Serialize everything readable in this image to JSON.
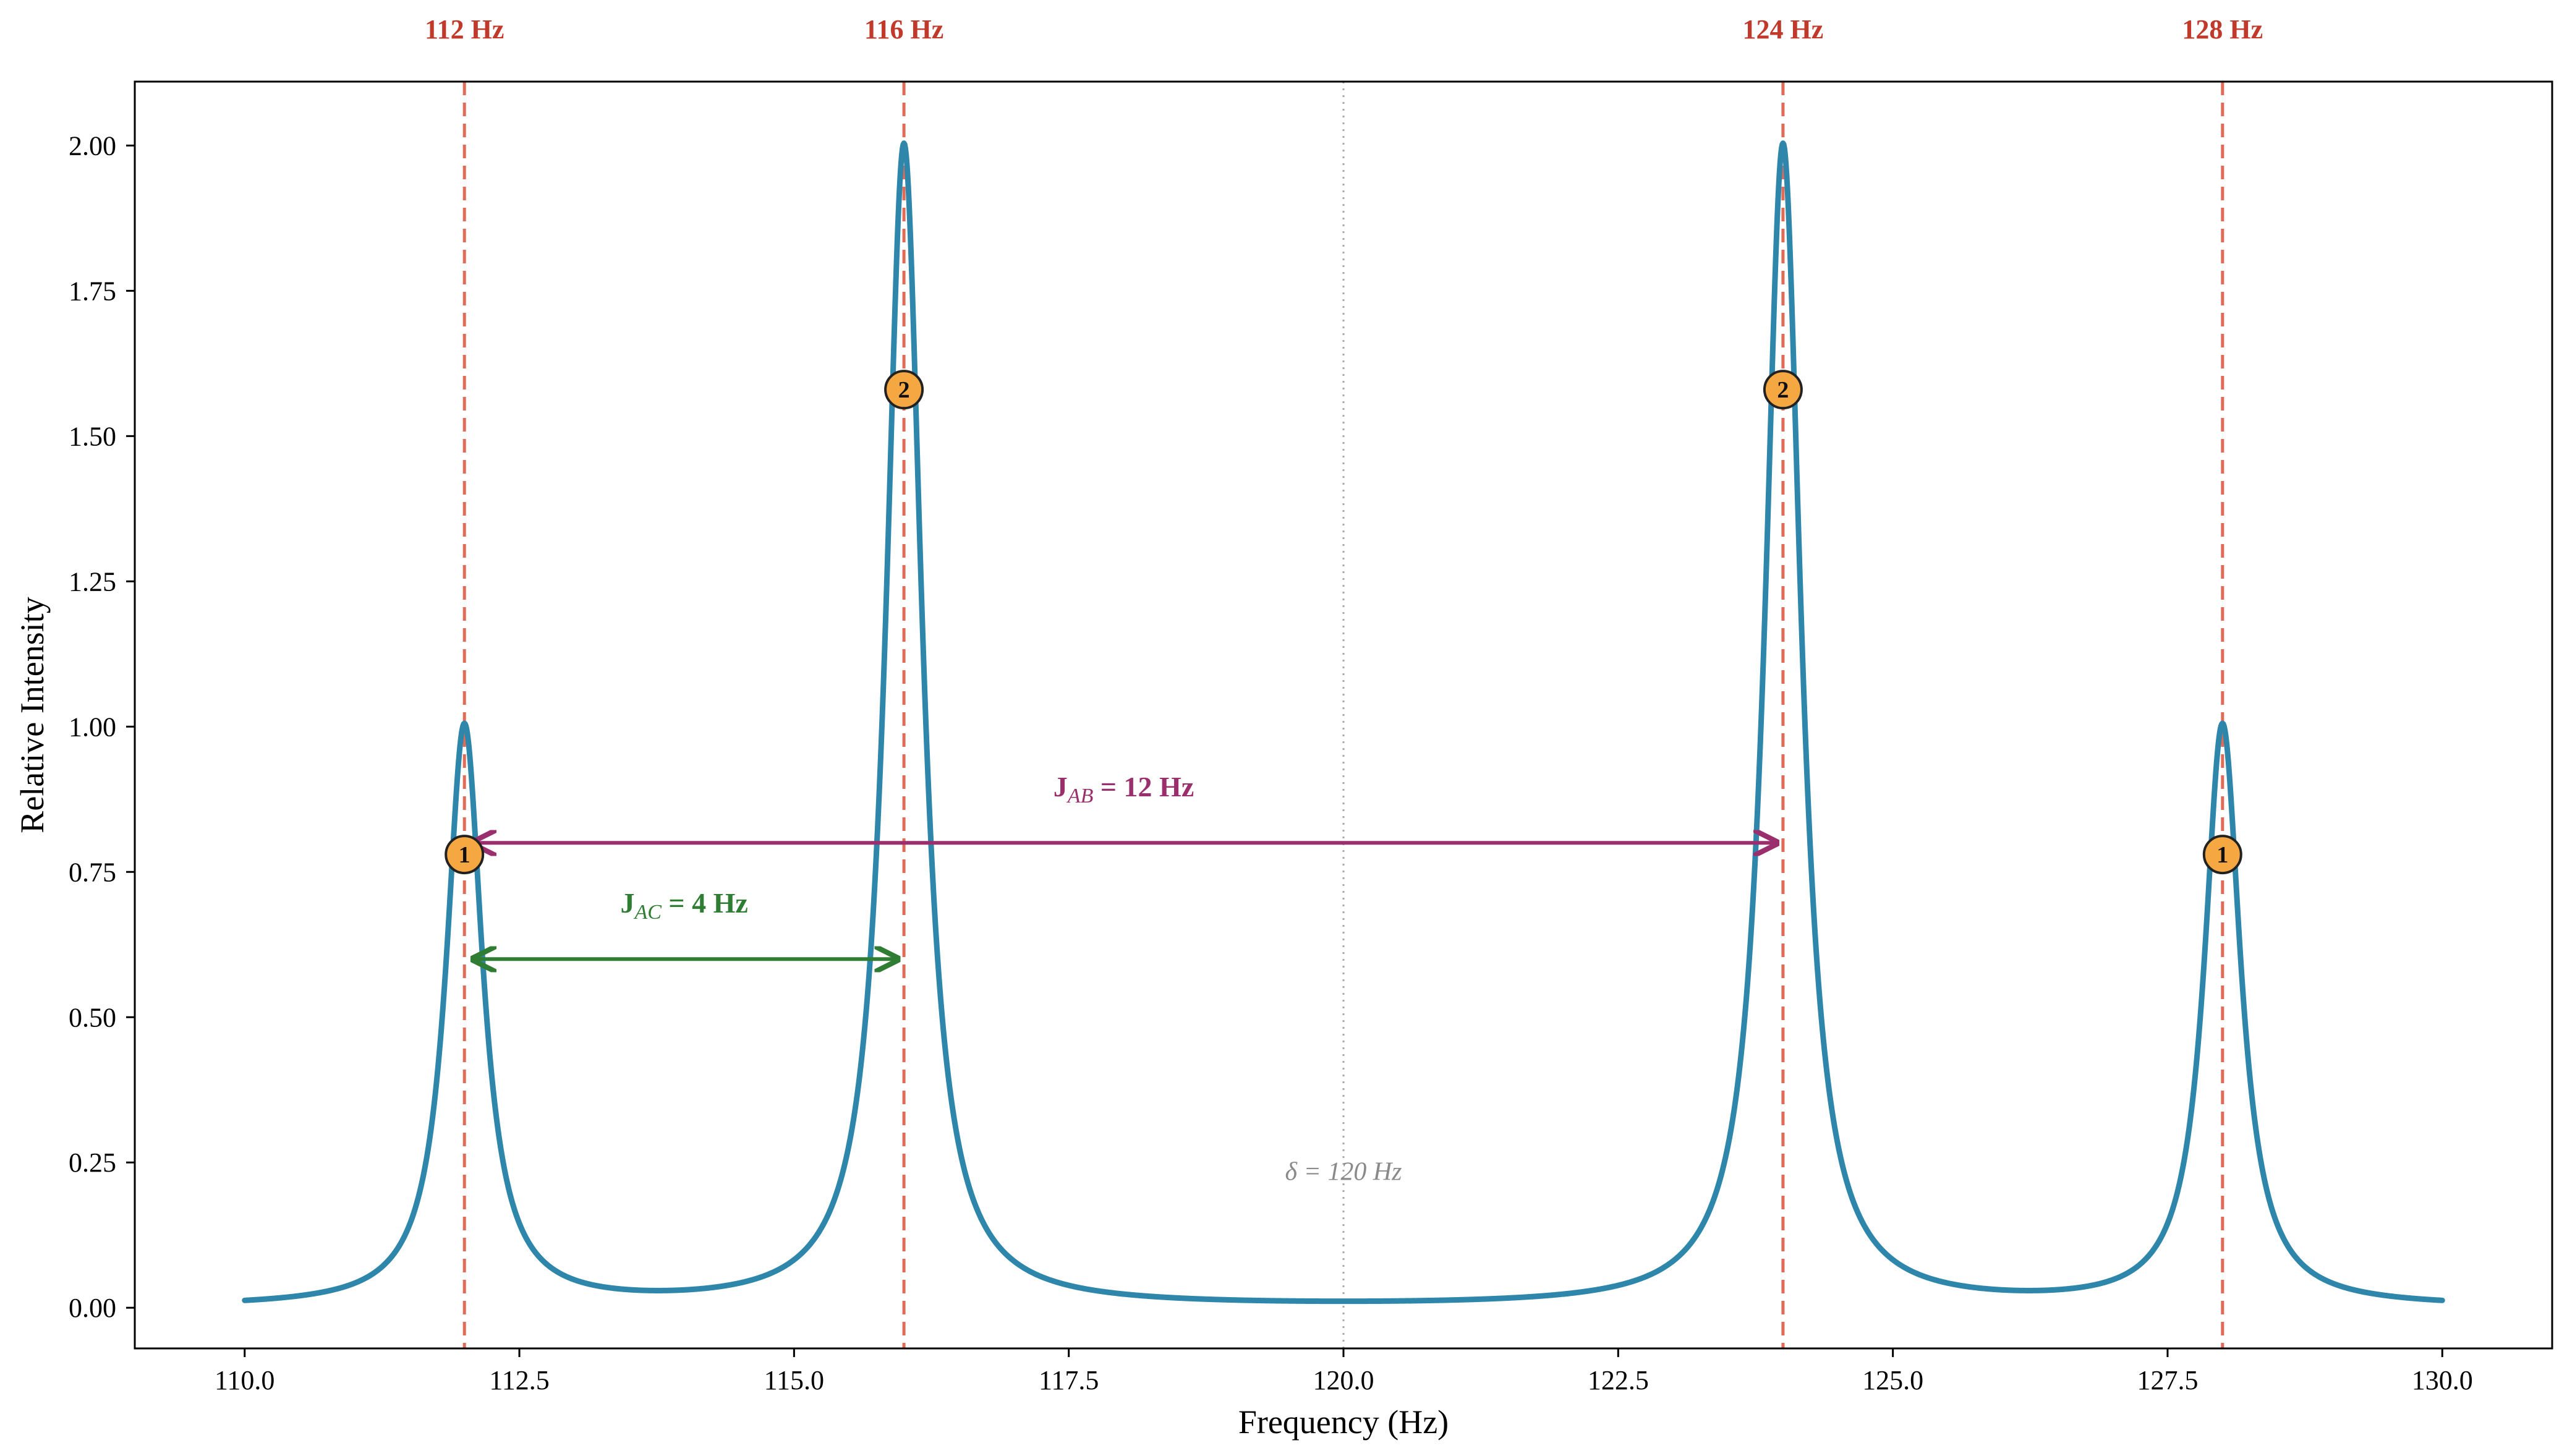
{
  "chart_data": {
    "type": "line",
    "xlabel": "Frequency (Hz)",
    "ylabel": "Relative Intensity",
    "xlim": [
      109.0,
      131.0
    ],
    "ylim": [
      -0.07,
      2.11
    ],
    "x_ticks": [
      110.0,
      112.5,
      115.0,
      117.5,
      120.0,
      122.5,
      125.0,
      127.5,
      130.0
    ],
    "x_tick_labels": [
      "110.0",
      "112.5",
      "115.0",
      "117.5",
      "120.0",
      "122.5",
      "125.0",
      "127.5",
      "130.0"
    ],
    "y_ticks": [
      0.0,
      0.25,
      0.5,
      0.75,
      1.0,
      1.25,
      1.5,
      1.75,
      2.0
    ],
    "y_tick_labels": [
      "0.00",
      "0.25",
      "0.50",
      "0.75",
      "1.00",
      "1.25",
      "1.50",
      "1.75",
      "2.00"
    ],
    "grid": false,
    "spectrum": {
      "x_range": [
        110.0,
        130.0
      ],
      "peaks": [
        {
          "center": 112,
          "intensity": 1
        },
        {
          "center": 116,
          "intensity": 2
        },
        {
          "center": 124,
          "intensity": 2
        },
        {
          "center": 128,
          "intensity": 1
        }
      ],
      "sampled_points": [
        {
          "x": 110.0,
          "y": 0.03
        },
        {
          "x": 111.0,
          "y": 0.1
        },
        {
          "x": 112.0,
          "y": 1.01
        },
        {
          "x": 113.0,
          "y": 0.11
        },
        {
          "x": 113.75,
          "y": 0.07
        },
        {
          "x": 115.0,
          "y": 0.2
        },
        {
          "x": 116.0,
          "y": 2.01
        },
        {
          "x": 117.0,
          "y": 0.2
        },
        {
          "x": 120.0,
          "y": 0.03
        },
        {
          "x": 123.0,
          "y": 0.2
        },
        {
          "x": 124.0,
          "y": 2.01
        },
        {
          "x": 125.0,
          "y": 0.2
        },
        {
          "x": 126.25,
          "y": 0.07
        },
        {
          "x": 127.0,
          "y": 0.11
        },
        {
          "x": 128.0,
          "y": 1.01
        },
        {
          "x": 129.0,
          "y": 0.1
        },
        {
          "x": 130.0,
          "y": 0.03
        }
      ]
    },
    "peak_lines": [
      {
        "x": 112,
        "label": "112 Hz"
      },
      {
        "x": 116,
        "label": "116 Hz"
      },
      {
        "x": 124,
        "label": "124 Hz"
      },
      {
        "x": 128,
        "label": "128 Hz"
      }
    ],
    "center_line": {
      "x": 120,
      "label": "δ = 120 Hz",
      "label_y": 0.22
    },
    "multiplicity_markers": [
      {
        "x": 112,
        "y": 0.78,
        "label": "1"
      },
      {
        "x": 116,
        "y": 1.58,
        "label": "2"
      },
      {
        "x": 124,
        "y": 1.58,
        "label": "2"
      },
      {
        "x": 128,
        "y": 0.78,
        "label": "1"
      }
    ],
    "couplings": [
      {
        "name": "J",
        "subscript": "AB",
        "suffix": " = 12 Hz",
        "from": 112,
        "to": 124,
        "y": 0.8,
        "label_x": 118.0,
        "label_y": 0.88
      },
      {
        "name": "J",
        "subscript": "AC",
        "suffix": " = 4 Hz",
        "from": 112,
        "to": 116,
        "y": 0.6,
        "label_x": 114.0,
        "label_y": 0.68
      }
    ]
  },
  "colors": {
    "spectrum_line": "#2e86ab",
    "peak_line": "#e06c57",
    "peak_label": "#c0392b",
    "center_line": "#aaaaaa",
    "center_label": "#8a8a8a",
    "j_ab": "#9b2f6e",
    "j_ac": "#2e7d32",
    "marker_fill": "#f5a742",
    "marker_edge": "#222222",
    "axis": "#000000"
  }
}
